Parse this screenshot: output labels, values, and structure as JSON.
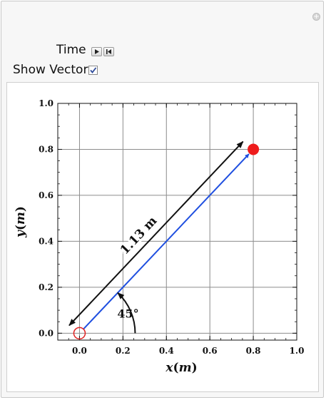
{
  "controls": {
    "time_label": "Time",
    "show_vector_label": "Show Vector",
    "show_vector_checked": true
  },
  "chart_data": {
    "type": "scatter",
    "xlabel": "x(m)",
    "ylabel": "y(m)",
    "xlim": [
      -0.1,
      1.0
    ],
    "ylim": [
      -0.03,
      1.0
    ],
    "x_ticks": [
      0.0,
      0.2,
      0.4,
      0.6,
      0.8,
      1.0
    ],
    "y_ticks": [
      0.0,
      0.2,
      0.4,
      0.6,
      0.8,
      1.0
    ],
    "x_tick_labels": [
      "0.0",
      "0.2",
      "0.4",
      "0.6",
      "0.8",
      "1.0"
    ],
    "y_tick_labels": [
      "0.0",
      "0.2",
      "0.4",
      "0.6",
      "0.8",
      "1.0"
    ],
    "grid": true,
    "start_point": {
      "x": 0.0,
      "y": 0.0
    },
    "end_point": {
      "x": 0.8,
      "y": 0.8
    },
    "displacement_label": "1.13 m",
    "angle_label": "45°",
    "colors": {
      "start_marker": "#e02020",
      "end_marker": "#ee1c1c",
      "position_vector": "#1f4fe0",
      "displacement_arrow": "#111111"
    }
  }
}
